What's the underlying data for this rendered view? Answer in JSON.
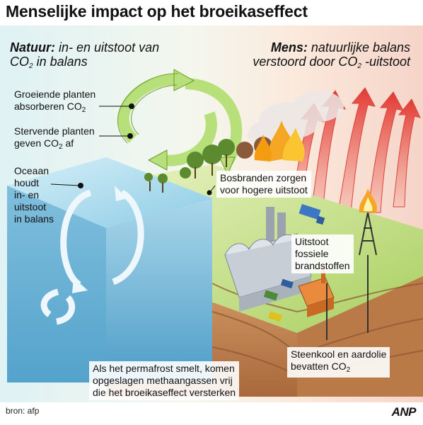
{
  "title": "Menselijke impact op het broeikaseffect",
  "nature": {
    "heading": "Natuur:",
    "line1": "in- en uitstoot van",
    "line2_pre": "CO",
    "line2_sub": "2",
    "line2_post": " in balans"
  },
  "human": {
    "heading": "Mens:",
    "line1": "natuurlijke balans",
    "line2_pre": "verstoord door CO",
    "line2_sub": "2",
    "line2_post": " -uitstoot"
  },
  "labels": {
    "growing_1": "Groeiende planten",
    "growing_2_pre": "absorberen CO",
    "growing_2_sub": "2",
    "dying_1": "Stervende planten",
    "dying_2_pre": "geven CO",
    "dying_2_sub": "2",
    "dying_2_post": " af",
    "ocean_1": "Oceaan",
    "ocean_2": "houdt",
    "ocean_3": "in- en",
    "ocean_4": "uitstoot",
    "ocean_5": "in balans",
    "fires_1": "Bosbranden zorgen",
    "fires_2": "voor hogere uitstoot",
    "fossil_1": "Uitstoot",
    "fossil_2": "fossiele",
    "fossil_3": "brandstoffen",
    "coal_1": "Steenkool en aardolie",
    "coal_2_pre": "bevatten CO",
    "coal_2_sub": "2",
    "permafrost_1": "Als het permafrost smelt, komen",
    "permafrost_2": "opgeslagen methaangassen vrij",
    "permafrost_3": "die het broeikaseffect versterken"
  },
  "source": "bron: afp",
  "logo": "ANP",
  "colors": {
    "cycle_green": "#b8e07a",
    "ocean": "#6fb6d8",
    "heat_arrow": "#e8473f",
    "fire": "#f5a623",
    "ground": "#c98a52"
  }
}
